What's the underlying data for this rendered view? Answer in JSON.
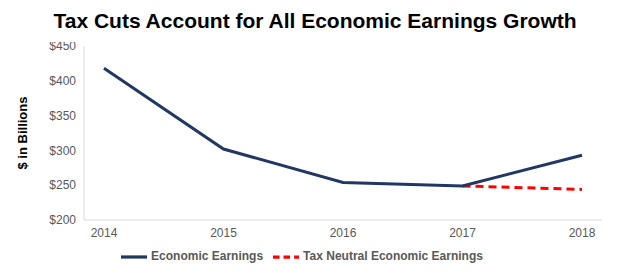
{
  "chart_data": {
    "type": "line",
    "title": "Tax Cuts Account for All Economic Earnings Growth",
    "y_label": "$ in Billions",
    "categories": [
      "2014",
      "2015",
      "2016",
      "2017",
      "2018"
    ],
    "series": [
      {
        "name": "Tax Neutral Economic Earnings",
        "color": "#ff0000",
        "line_style": "dashed",
        "values": [
          null,
          null,
          null,
          249,
          244
        ]
      },
      {
        "name": "Economic Earnings",
        "color": "#203864",
        "line_style": "solid",
        "values": [
          418,
          302,
          254,
          249,
          293
        ]
      }
    ],
    "ylim": [
      200,
      450
    ],
    "yticks": [
      {
        "value": 200,
        "label": "$200"
      },
      {
        "value": 250,
        "label": "$250"
      },
      {
        "value": 300,
        "label": "$300"
      },
      {
        "value": 350,
        "label": "$350"
      },
      {
        "value": 400,
        "label": "$400"
      },
      {
        "value": 450,
        "label": "$450"
      }
    ],
    "grid": false,
    "legend": "bottom"
  }
}
